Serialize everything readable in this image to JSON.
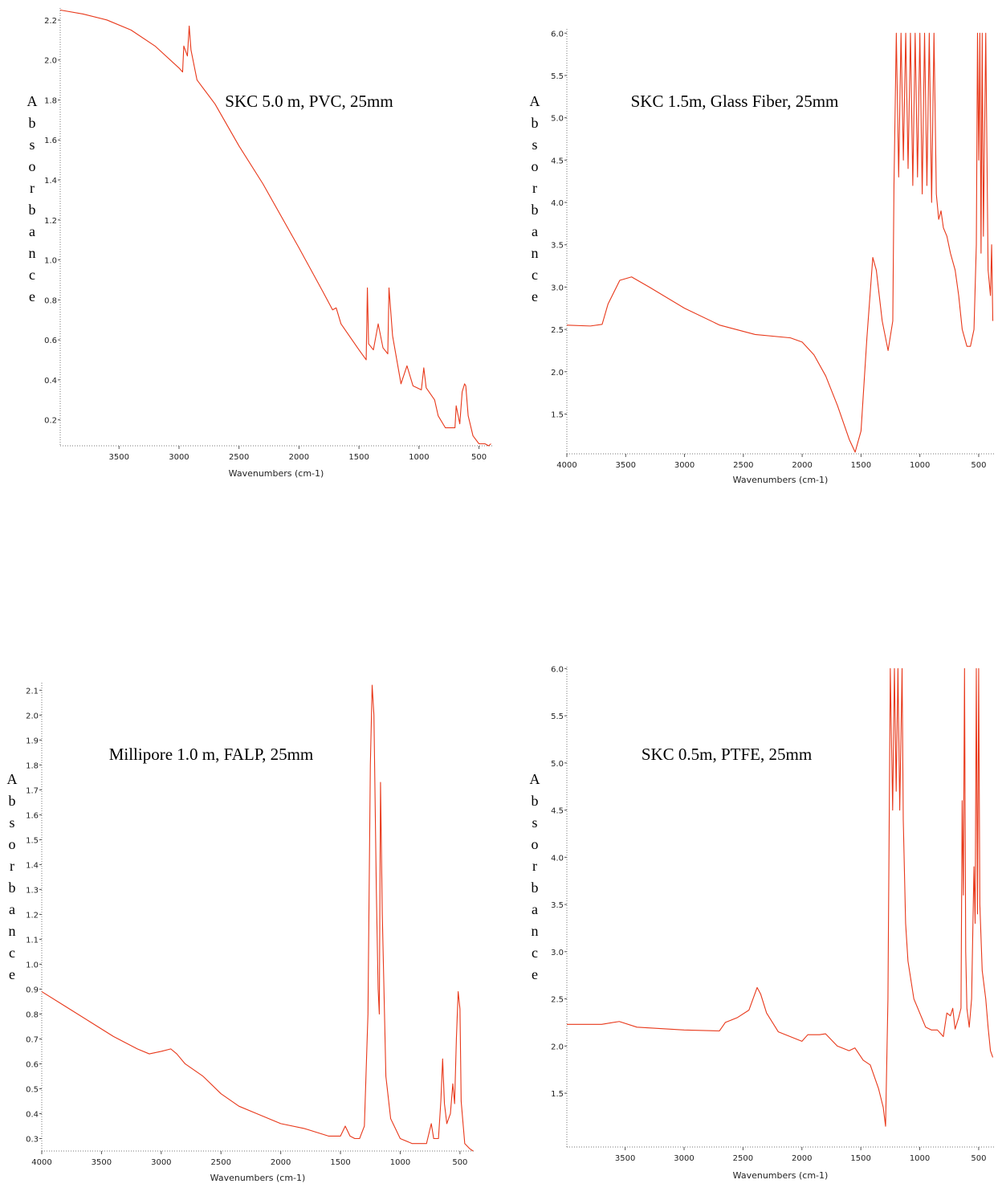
{
  "chart_data": [
    {
      "type": "line",
      "title": "SKC 5.0 m, PVC, 25mm",
      "x_label": "Wavenumbers (cm-1)",
      "y_label": "Absorbance",
      "color": "#e8381a",
      "xlim": [
        3990,
        390
      ],
      "ylim": [
        0.07,
        2.26
      ],
      "xticks": [
        3500,
        3000,
        2500,
        2000,
        1500,
        1000,
        500
      ],
      "yticks": [
        0.2,
        0.4,
        0.6,
        0.8,
        {
          "value": 1,
          "label": "1.0"
        },
        1.2,
        1.4,
        1.6,
        1.8,
        {
          "value": 2,
          "label": "2.0"
        },
        2.2
      ],
      "x": [
        3990,
        3800,
        3600,
        3400,
        3200,
        3000,
        2970,
        2960,
        2930,
        2915,
        2900,
        2850,
        2700,
        2500,
        2300,
        2000,
        1800,
        1720,
        1690,
        1650,
        1500,
        1440,
        1430,
        1420,
        1380,
        1340,
        1300,
        1260,
        1250,
        1220,
        1150,
        1100,
        1050,
        980,
        960,
        940,
        870,
        840,
        780,
        700,
        690,
        660,
        640,
        620,
        610,
        590,
        550,
        500,
        450,
        420,
        400
      ],
      "values": [
        2.25,
        2.23,
        2.2,
        2.15,
        2.07,
        1.96,
        1.94,
        2.07,
        2.02,
        2.17,
        2.05,
        1.9,
        1.78,
        1.57,
        1.38,
        1.06,
        0.84,
        0.75,
        0.76,
        0.68,
        0.55,
        0.5,
        0.86,
        0.58,
        0.55,
        0.68,
        0.56,
        0.53,
        0.86,
        0.62,
        0.38,
        0.47,
        0.37,
        0.35,
        0.46,
        0.36,
        0.3,
        0.22,
        0.16,
        0.16,
        0.27,
        0.18,
        0.34,
        0.38,
        0.37,
        0.22,
        0.12,
        0.08,
        0.08,
        0.07,
        0.08
      ]
    },
    {
      "type": "line",
      "title": "SKC 1.5m, Glass Fiber, 25mm",
      "x_label": "Wavenumbers (cm-1)",
      "y_label": "Absorbance",
      "color": "#e8381a",
      "xlim": [
        4000,
        370
      ],
      "ylim": [
        1.03,
        6.05
      ],
      "xticks": [
        4000,
        3500,
        3000,
        2500,
        2000,
        1500,
        1000,
        500
      ],
      "yticks": [
        1.5,
        {
          "value": 2,
          "label": "2.0"
        },
        2.5,
        {
          "value": 3,
          "label": "3.0"
        },
        3.5,
        {
          "value": 4,
          "label": "4.0"
        },
        4.5,
        {
          "value": 5,
          "label": "5.0"
        },
        5.5,
        {
          "value": 6,
          "label": "6.0"
        }
      ],
      "x": [
        4000,
        3800,
        3700,
        3650,
        3550,
        3450,
        3300,
        3000,
        2700,
        2400,
        2100,
        2000,
        1900,
        1800,
        1700,
        1600,
        1550,
        1500,
        1450,
        1400,
        1370,
        1320,
        1270,
        1230,
        1220,
        1200,
        1180,
        1160,
        1140,
        1120,
        1100,
        1080,
        1060,
        1040,
        1020,
        1000,
        980,
        960,
        940,
        920,
        900,
        880,
        860,
        840,
        820,
        800,
        770,
        740,
        700,
        670,
        640,
        600,
        570,
        540,
        520,
        510,
        500,
        490,
        480,
        470,
        460,
        440,
        420,
        400,
        390,
        380
      ],
      "values": [
        2.55,
        2.54,
        2.56,
        2.8,
        3.08,
        3.12,
        3.0,
        2.75,
        2.55,
        2.44,
        2.4,
        2.35,
        2.2,
        1.95,
        1.6,
        1.2,
        1.05,
        1.3,
        2.4,
        3.35,
        3.2,
        2.6,
        2.25,
        2.6,
        4.2,
        6.0,
        4.3,
        6.0,
        4.5,
        6.0,
        4.4,
        6.0,
        4.2,
        6.0,
        4.3,
        6.0,
        4.1,
        6.0,
        4.2,
        6.0,
        4.0,
        6.0,
        4.1,
        3.8,
        3.9,
        3.7,
        3.6,
        3.4,
        3.2,
        2.9,
        2.5,
        2.3,
        2.3,
        2.5,
        3.5,
        6.0,
        4.5,
        6.0,
        3.4,
        6.0,
        3.6,
        6.0,
        3.2,
        2.9,
        3.5,
        2.6
      ]
    },
    {
      "type": "line",
      "title": "Millipore 1.0 m, FALP, 25mm",
      "x_label": "Wavenumbers (cm-1)",
      "y_label": "Absorbance",
      "color": "#e8381a",
      "xlim": [
        4000,
        385
      ],
      "ylim": [
        0.25,
        2.13
      ],
      "xticks": [
        4000,
        3500,
        3000,
        2500,
        2000,
        1500,
        1000,
        500
      ],
      "yticks": [
        0.3,
        0.4,
        0.5,
        0.6,
        0.7,
        0.8,
        0.9,
        {
          "value": 1,
          "label": "1.0"
        },
        1.1,
        1.2,
        1.3,
        1.4,
        1.5,
        1.6,
        1.7,
        1.8,
        1.9,
        {
          "value": 2,
          "label": "2.0"
        },
        2.1
      ],
      "x": [
        4000,
        3800,
        3600,
        3400,
        3200,
        3100,
        3000,
        2920,
        2870,
        2800,
        2650,
        2500,
        2350,
        2200,
        2000,
        1800,
        1600,
        1500,
        1460,
        1420,
        1380,
        1340,
        1300,
        1270,
        1250,
        1235,
        1220,
        1200,
        1185,
        1175,
        1165,
        1150,
        1120,
        1080,
        1000,
        900,
        780,
        740,
        720,
        680,
        660,
        645,
        630,
        610,
        580,
        560,
        545,
        530,
        515,
        500,
        490,
        460,
        420,
        390
      ],
      "values": [
        0.89,
        0.83,
        0.77,
        0.71,
        0.66,
        0.64,
        0.65,
        0.66,
        0.64,
        0.6,
        0.55,
        0.48,
        0.43,
        0.4,
        0.36,
        0.34,
        0.31,
        0.31,
        0.35,
        0.31,
        0.3,
        0.3,
        0.35,
        0.8,
        1.8,
        2.12,
        2.0,
        1.3,
        0.9,
        0.8,
        1.73,
        1.2,
        0.55,
        0.38,
        0.3,
        0.28,
        0.28,
        0.36,
        0.3,
        0.3,
        0.45,
        0.62,
        0.44,
        0.36,
        0.4,
        0.52,
        0.44,
        0.7,
        0.89,
        0.82,
        0.45,
        0.28,
        0.26,
        0.25
      ]
    },
    {
      "type": "line",
      "title": "SKC 0.5m, PTFE, 25mm",
      "x_label": "Wavenumbers (cm-1)",
      "y_label": "Absorbance",
      "color": "#e8381a",
      "xlim": [
        3995,
        370
      ],
      "ylim": [
        0.93,
        6.02
      ],
      "xticks": [
        3500,
        3000,
        2500,
        2000,
        1500,
        1000,
        500
      ],
      "yticks": [
        1.5,
        {
          "value": 2,
          "label": "2.0"
        },
        2.5,
        {
          "value": 3,
          "label": "3.0"
        },
        3.5,
        {
          "value": 4,
          "label": "4.0"
        },
        4.5,
        {
          "value": 5,
          "label": "5.0"
        },
        5.5,
        {
          "value": 6,
          "label": "6.0"
        }
      ],
      "x": [
        3995,
        3700,
        3550,
        3400,
        3000,
        2700,
        2650,
        2550,
        2450,
        2380,
        2350,
        2300,
        2200,
        2000,
        1950,
        1850,
        1800,
        1700,
        1600,
        1550,
        1480,
        1420,
        1350,
        1310,
        1290,
        1270,
        1250,
        1230,
        1215,
        1200,
        1185,
        1170,
        1150,
        1140,
        1120,
        1100,
        1050,
        1000,
        950,
        900,
        850,
        800,
        770,
        740,
        720,
        700,
        670,
        650,
        640,
        630,
        620,
        610,
        600,
        580,
        560,
        540,
        530,
        520,
        510,
        500,
        490,
        470,
        440,
        420,
        400,
        380
      ],
      "values": [
        2.23,
        2.23,
        2.26,
        2.2,
        2.17,
        2.16,
        2.25,
        2.3,
        2.38,
        2.62,
        2.55,
        2.35,
        2.15,
        2.05,
        2.12,
        2.12,
        2.13,
        2.0,
        1.95,
        1.98,
        1.85,
        1.8,
        1.55,
        1.35,
        1.15,
        2.5,
        6.0,
        4.5,
        6.0,
        4.7,
        6.0,
        4.5,
        6.0,
        4.4,
        3.3,
        2.9,
        2.5,
        2.35,
        2.2,
        2.17,
        2.17,
        2.1,
        2.35,
        2.32,
        2.4,
        2.18,
        2.3,
        2.4,
        4.6,
        3.6,
        6.0,
        3.0,
        2.4,
        2.2,
        2.5,
        3.9,
        3.3,
        6.0,
        3.4,
        6.0,
        3.5,
        2.8,
        2.5,
        2.2,
        1.95,
        1.88
      ]
    }
  ]
}
